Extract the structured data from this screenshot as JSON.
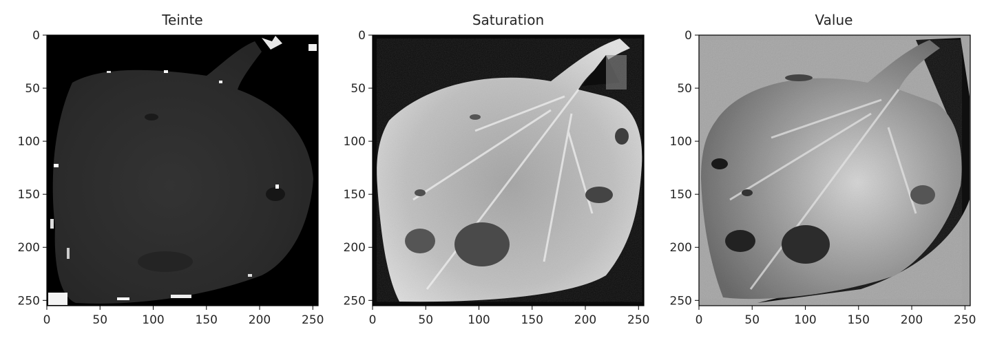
{
  "chart_data": [
    {
      "type": "heatmap",
      "title": "Teinte",
      "xlim": [
        0,
        255
      ],
      "ylim": [
        255,
        0
      ],
      "xticks": [
        0,
        50,
        100,
        150,
        200,
        250
      ],
      "yticks": [
        0,
        50,
        100,
        150,
        200,
        250
      ],
      "colormap": "gray",
      "content": "grayscale image channel: hue"
    },
    {
      "type": "heatmap",
      "title": "Saturation",
      "xlim": [
        0,
        255
      ],
      "ylim": [
        255,
        0
      ],
      "xticks": [
        0,
        50,
        100,
        150,
        200,
        250
      ],
      "yticks": [
        0,
        50,
        100,
        150,
        200,
        250
      ],
      "colormap": "gray",
      "content": "grayscale image channel: saturation"
    },
    {
      "type": "heatmap",
      "title": "Value",
      "xlim": [
        0,
        255
      ],
      "ylim": [
        255,
        0
      ],
      "xticks": [
        0,
        50,
        100,
        150,
        200,
        250
      ],
      "yticks": [
        0,
        50,
        100,
        150,
        200,
        250
      ],
      "colormap": "gray",
      "content": "grayscale image channel: value"
    }
  ],
  "colors": {
    "axis": "#000000",
    "text": "#262626",
    "background": "#ffffff"
  }
}
